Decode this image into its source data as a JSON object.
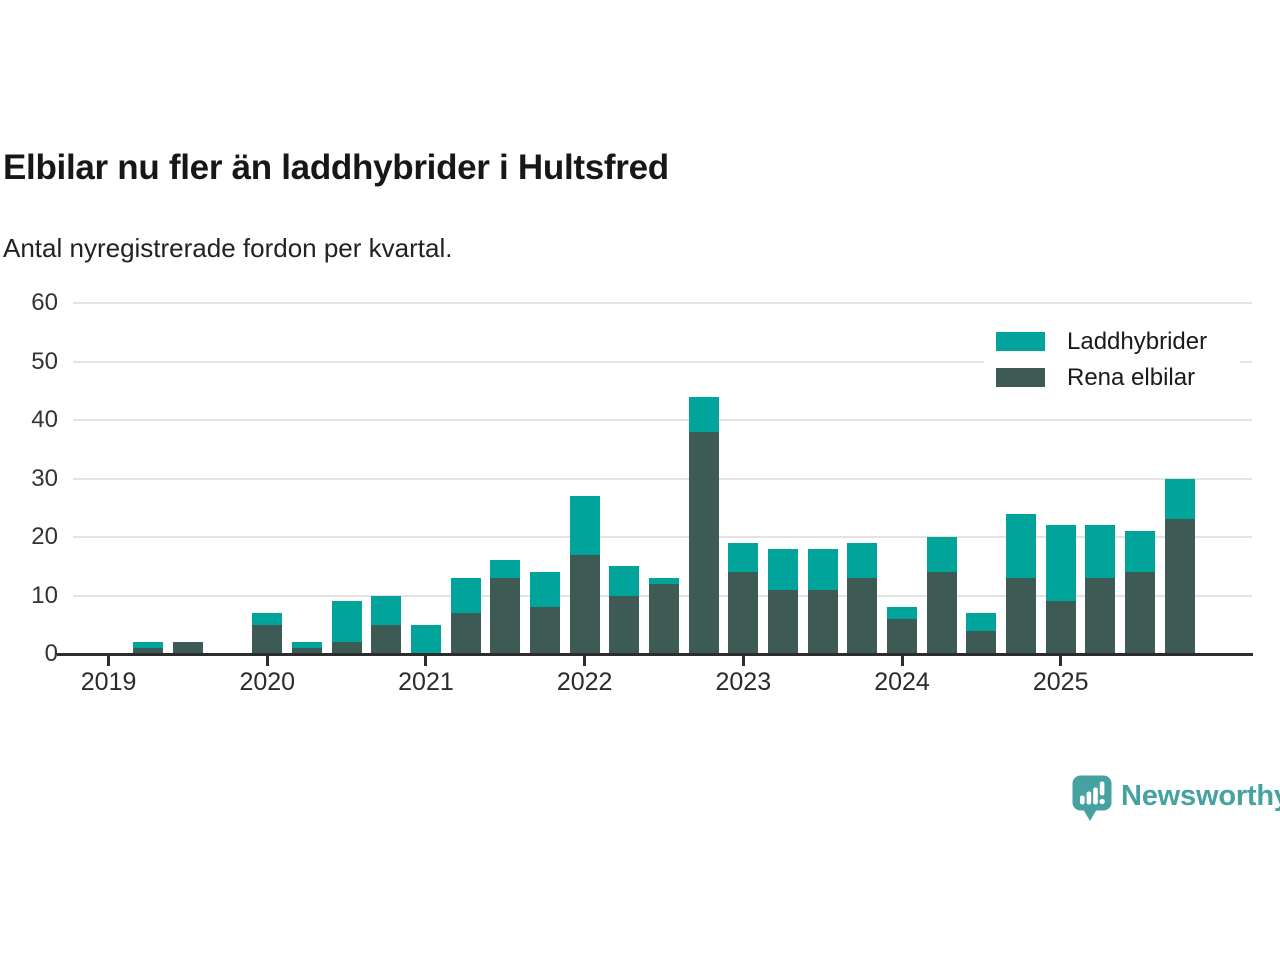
{
  "header": {
    "title": "Elbilar nu fler än laddhybrider i Hultsfred",
    "subtitle": "Antal nyregistrerade fordon per kvartal."
  },
  "chart_data": {
    "type": "bar",
    "stacked": true,
    "title": "Elbilar nu fler än laddhybrider i Hultsfred",
    "subtitle": "Antal nyregistrerade fordon per kvartal.",
    "grid": "horizontal",
    "legend_position": "top-right",
    "ylim": [
      0,
      60
    ],
    "y_ticks": [
      0,
      10,
      20,
      30,
      40,
      50,
      60
    ],
    "x_tick_labels": [
      "2019",
      "2020",
      "2021",
      "2022",
      "2023",
      "2024",
      "2025"
    ],
    "categories": [
      "2019 K1",
      "2019 K2",
      "2019 K3",
      "2019 K4",
      "2020 K1",
      "2020 K2",
      "2020 K3",
      "2020 K4",
      "2021 K1",
      "2021 K2",
      "2021 K3",
      "2021 K4",
      "2022 K1",
      "2022 K2",
      "2022 K3",
      "2022 K4",
      "2023 K1",
      "2023 K2",
      "2023 K3",
      "2023 K4",
      "2024 K1",
      "2024 K2",
      "2024 K3",
      "2024 K4",
      "2025 K1",
      "2025 K2",
      "2025 K3",
      "2025 K4"
    ],
    "series": [
      {
        "name": "Laddhybrider",
        "color": "#00a49b",
        "stack_order": "top",
        "values": [
          0,
          1,
          0,
          0,
          2,
          1,
          7,
          5,
          5,
          6,
          3,
          6,
          10,
          5,
          1,
          6,
          5,
          7,
          7,
          6,
          2,
          6,
          3,
          11,
          13,
          9,
          7,
          7
        ]
      },
      {
        "name": "Rena elbilar",
        "color": "#3d5a54",
        "stack_order": "bottom",
        "values": [
          0,
          1,
          2,
          0,
          5,
          1,
          2,
          5,
          0,
          7,
          13,
          8,
          17,
          10,
          12,
          38,
          14,
          11,
          11,
          13,
          6,
          14,
          4,
          13,
          9,
          13,
          14,
          23
        ]
      }
    ],
    "totals": [
      0,
      2,
      2,
      0,
      7,
      2,
      9,
      10,
      5,
      13,
      16,
      14,
      27,
      15,
      13,
      44,
      19,
      18,
      18,
      19,
      8,
      20,
      7,
      24,
      22,
      22,
      21,
      30
    ]
  },
  "legend": {
    "items": [
      {
        "label": "Laddhybrider",
        "color": "#00a49b"
      },
      {
        "label": "Rena elbilar",
        "color": "#3d5a54"
      }
    ]
  },
  "footer": {
    "brand": "Newsworthy",
    "brand_color": "#45a2a0"
  },
  "style": {
    "gridline_color": "#e3e3e3",
    "axis_color": "#2d2d2d",
    "background": "#ffffff"
  }
}
